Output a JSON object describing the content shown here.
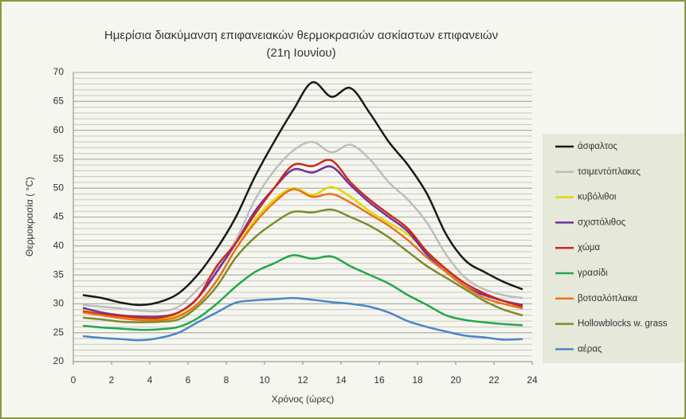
{
  "chart_data": {
    "type": "line",
    "title": "Ημερίσια διακύμανση επιφανειακών θερμοκρασιών ασκίαστων επιφανειών",
    "subtitle": "(21η Ιουνίου)",
    "x_label": "Χρόνος (ώρες)",
    "y_label": "Θερμοκρασία ( °C)",
    "x": [
      0.5,
      1.5,
      2.5,
      3.5,
      4.5,
      5.5,
      6.5,
      7.5,
      8.5,
      9.5,
      10.5,
      11.5,
      12.5,
      13.5,
      14.5,
      15.5,
      16.5,
      17.5,
      18.5,
      19.5,
      20.5,
      21.5,
      22.5,
      23.5
    ],
    "xlim": [
      0,
      24
    ],
    "xticks": [
      0,
      2,
      4,
      6,
      8,
      10,
      12,
      14,
      16,
      18,
      20,
      22,
      24
    ],
    "ylim": [
      20,
      70
    ],
    "yticks": [
      20,
      25,
      30,
      35,
      40,
      45,
      50,
      55,
      60,
      65,
      70
    ],
    "grid": true,
    "grid_minor_step": 1,
    "legend": "right",
    "series": [
      {
        "name": "άσφαλτος",
        "color": "#1a1a1a",
        "values": [
          31.5,
          31,
          30.2,
          29.8,
          30.3,
          31.8,
          35,
          39.5,
          45,
          52,
          58,
          63.5,
          68.3,
          65.8,
          67.3,
          63,
          58,
          54,
          49,
          42,
          37.5,
          35.5,
          33.8,
          32.5
        ]
      },
      {
        "name": "τσιμεντόπλακες",
        "color": "#bdbdbd",
        "values": [
          29.8,
          29.5,
          29.2,
          28.8,
          28.7,
          29.5,
          32.5,
          36,
          41,
          48,
          53,
          56.5,
          58,
          56.2,
          57.5,
          55,
          51,
          48,
          44,
          38.5,
          34.5,
          32.5,
          31.5,
          31
        ]
      },
      {
        "name": "κυβόλιθοι",
        "color": "#e0d800",
        "values": [
          28.8,
          28.2,
          27.8,
          27.5,
          27.5,
          28,
          30,
          34,
          39.5,
          44.5,
          48,
          50,
          48.8,
          50.2,
          48.5,
          46,
          44,
          42,
          39,
          36,
          33,
          31.5,
          30.5,
          29.5
        ]
      },
      {
        "name": "σχιστόλιθος",
        "color": "#7030a0",
        "values": [
          29.3,
          28.5,
          28,
          27.8,
          27.8,
          28.5,
          31,
          35.5,
          40.5,
          46,
          50,
          53.2,
          52.7,
          53.7,
          50.5,
          47.5,
          45,
          42.5,
          38.5,
          35.5,
          33,
          31.5,
          30.5,
          29.8
        ]
      },
      {
        "name": "χώμα",
        "color": "#cc2a1a",
        "values": [
          28.7,
          28.2,
          27.9,
          27.6,
          27.6,
          28.5,
          31,
          36.5,
          40.5,
          45.5,
          50,
          54,
          53.8,
          54.8,
          51,
          48,
          45.5,
          43,
          39,
          36,
          33.5,
          31.8,
          30.5,
          29.5
        ]
      },
      {
        "name": "γρασίδι",
        "color": "#22a84a",
        "values": [
          26.2,
          25.9,
          25.7,
          25.5,
          25.6,
          26,
          27.5,
          30,
          33,
          35.5,
          37,
          38.4,
          37.8,
          38.2,
          36.5,
          35,
          33.5,
          31.5,
          29.8,
          28,
          27.2,
          26.8,
          26.5,
          26.3
        ]
      },
      {
        "name": "βοτσαλόπλακα",
        "color": "#e8731c",
        "values": [
          28.5,
          28,
          27.5,
          27.2,
          27.2,
          27.8,
          30,
          34,
          39.5,
          44,
          47.5,
          49.8,
          48.5,
          49,
          47.5,
          45.5,
          43.5,
          41,
          38,
          35.5,
          33,
          31,
          30,
          29.2
        ]
      },
      {
        "name": "Hollowblocks w. grass",
        "color": "#7f8a2a",
        "values": [
          27.6,
          27.3,
          26.9,
          26.8,
          26.9,
          27.3,
          29.5,
          33,
          38,
          41.5,
          44,
          45.9,
          45.8,
          46.3,
          45,
          43.5,
          41.5,
          39,
          36.5,
          34.5,
          32.5,
          30.5,
          29,
          28
        ]
      },
      {
        "name": "αέρας",
        "color": "#4a86c8",
        "values": [
          24.4,
          24.1,
          23.9,
          23.7,
          24.1,
          25,
          26.8,
          28.5,
          30.2,
          30.6,
          30.8,
          31,
          30.7,
          30.3,
          30,
          29.5,
          28.5,
          27,
          26,
          25.2,
          24.5,
          24.2,
          23.8,
          23.9
        ]
      }
    ]
  }
}
